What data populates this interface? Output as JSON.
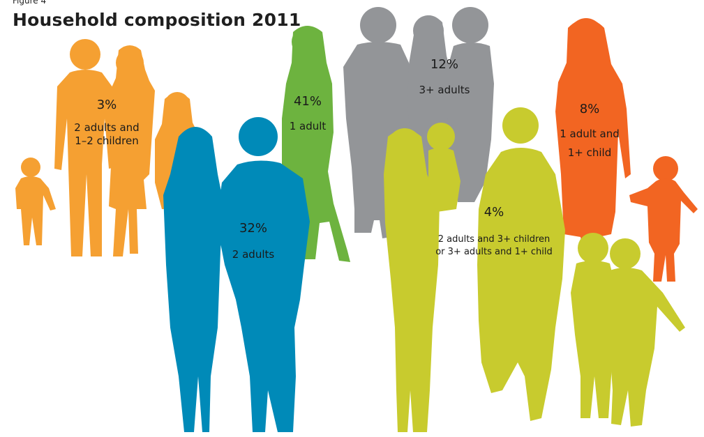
{
  "figure_label": "Figure 4",
  "title": "Household composition 2011",
  "colors": {
    "orange_light": "#F5A032",
    "green": "#6DB33F",
    "grey": "#939598",
    "orange": "#F26522",
    "blue": "#008AB8",
    "lime": "#C8CB2E"
  },
  "chart_data": {
    "type": "pictogram",
    "title": "Household composition 2011",
    "categories": [
      "2 adults and 1–2 children",
      "1 adult",
      "3+ adults",
      "1 adult and 1+ child",
      "2 adults",
      "2 adults and 3+ children or 3+ adults and 1+ child"
    ],
    "values": [
      3,
      41,
      12,
      8,
      32,
      4
    ],
    "unit": "%",
    "groups": {
      "two_adults_children": {
        "pct": "3%",
        "line1": "2 adults and",
        "line2": "1–2 children",
        "color": "#F5A032",
        "icon": "family-silhouette-icon"
      },
      "one_adult": {
        "pct": "41%",
        "line1": "1 adult",
        "color": "#6DB33F",
        "icon": "woman-silhouette-icon"
      },
      "three_adults": {
        "pct": "12%",
        "line1": "3+ adults",
        "color": "#939598",
        "icon": "adults-group-silhouette-icon"
      },
      "one_adult_child": {
        "pct": "8%",
        "line1": "1 adult and",
        "line2": "1+ child",
        "color": "#F26522",
        "icon": "parent-child-silhouette-icon"
      },
      "two_adults": {
        "pct": "32%",
        "line1": "2 adults",
        "color": "#008AB8",
        "icon": "couple-silhouette-icon"
      },
      "large_family": {
        "pct": "4%",
        "line1": "2 adults and 3+ children",
        "line2": "or 3+ adults and 1+ child",
        "color": "#C8CB2E",
        "icon": "large-family-silhouette-icon"
      }
    }
  }
}
